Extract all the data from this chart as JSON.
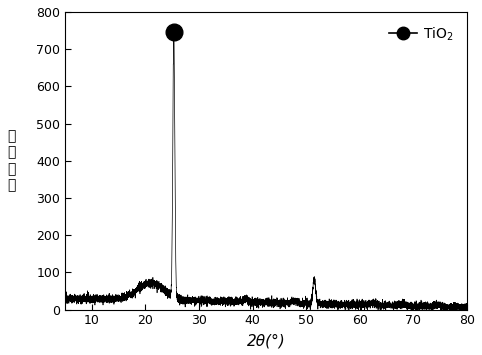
{
  "xlim": [
    5,
    80
  ],
  "ylim": [
    0,
    800
  ],
  "xticks": [
    10,
    20,
    30,
    40,
    50,
    60,
    70,
    80
  ],
  "yticks": [
    0,
    100,
    200,
    300,
    400,
    500,
    600,
    700,
    800
  ],
  "xlabel": "2θ(°)",
  "ylabel": "相对强度",
  "legend_label": "TiO₂",
  "line_color": "#000000",
  "background_color": "#ffffff",
  "main_peak_x": 25.3,
  "main_peak_y": 750,
  "secondary_peak_x": 51.5,
  "secondary_peak_y": 95,
  "noise_baseline": 30,
  "noise_amplitude": 10,
  "seed": 12345,
  "figsize": [
    4.82,
    3.55
  ],
  "dpi": 100,
  "marker_size": 12
}
